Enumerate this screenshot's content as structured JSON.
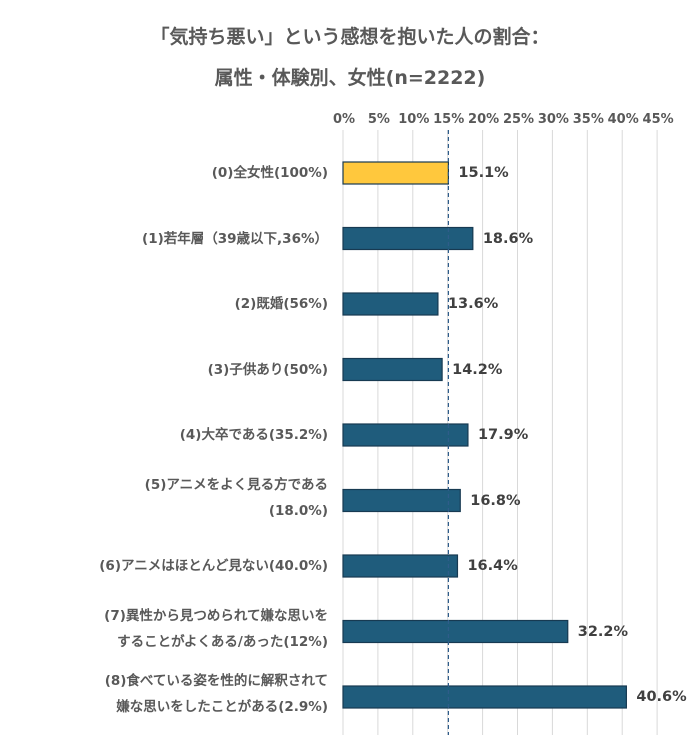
{
  "chart_data": {
    "type": "bar",
    "orientation": "horizontal",
    "title": "「気持ち悪い」という感想を抱いた人の割合：",
    "subtitle": "属性・体験別、女性(n=2222)",
    "xlabel": "",
    "ylabel": "",
    "xlim": [
      0,
      45
    ],
    "x_ticks": [
      "0%",
      "5%",
      "10%",
      "15%",
      "20%",
      "25%",
      "30%",
      "35%",
      "40%",
      "45%"
    ],
    "grid": "vertical",
    "reference_line": 15.1,
    "categories": [
      [
        "(0)全女性(100%)"
      ],
      [
        "(1)若年層（39歳以下,36%）"
      ],
      [
        "(2)既婚(56%)"
      ],
      [
        "(3)子供あり(50%)"
      ],
      [
        "(4)大卒である(35.2%)"
      ],
      [
        "(5)アニメをよく見る方である",
        "(18.0%)"
      ],
      [
        "(6)アニメはほとんど見ない(40.0%)"
      ],
      [
        "(7)異性から見つめられて嫌な思いを",
        "することがよくある/あった(12%)"
      ],
      [
        "(8)食べている姿を性的に解釈されて",
        "嫌な思いをしたことがある(2.9%)"
      ]
    ],
    "values": [
      15.1,
      18.6,
      13.6,
      14.2,
      17.9,
      16.8,
      16.4,
      32.2,
      40.6
    ],
    "value_labels": [
      "15.1%",
      "18.6%",
      "13.6%",
      "14.2%",
      "17.9%",
      "16.8%",
      "16.4%",
      "32.2%",
      "40.6%"
    ],
    "colors": {
      "highlight": "#FFC83D",
      "bar": "#1F5C7C",
      "bar_edge": "#173A52",
      "reference_line": "#2E5C8A",
      "grid": "#D9D9D9"
    }
  }
}
